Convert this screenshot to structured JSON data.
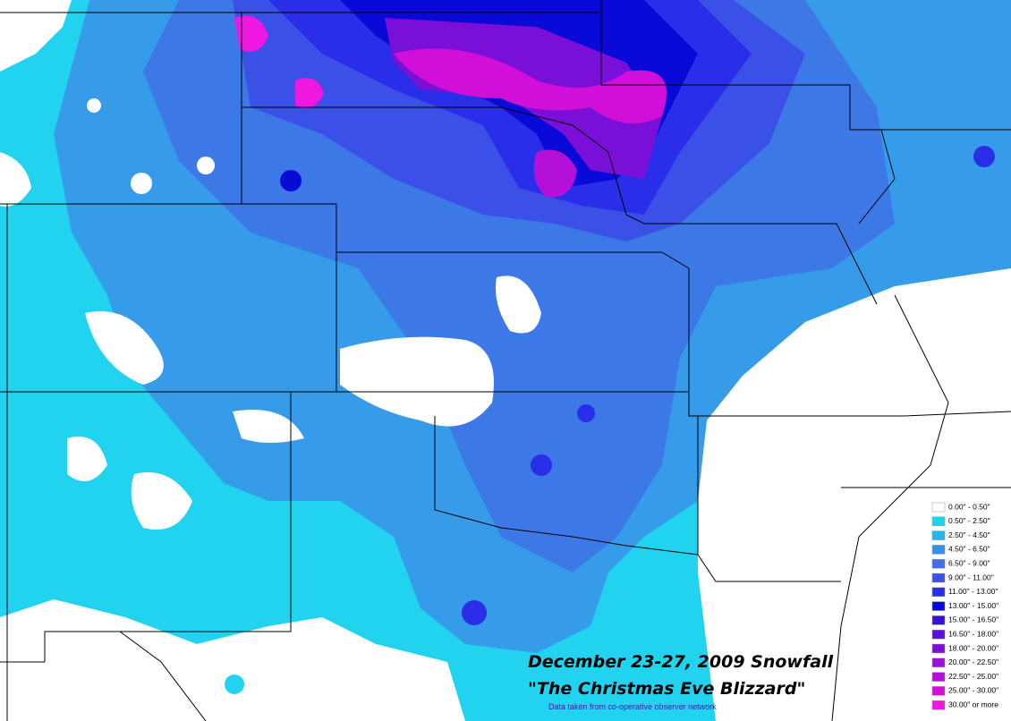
{
  "map": {
    "title_line1": "December 23-27, 2009 Snowfall",
    "title_line2": "\"The Christmas Eve Blizzard\"",
    "source_note": "Data taken from co-operative observer network",
    "legend": [
      {
        "label": "0.00\" - 0.50\"",
        "color": "#ffffff"
      },
      {
        "label": "0.50\" - 2.50\"",
        "color": "#22d3f0"
      },
      {
        "label": "2.50\" - 4.50\"",
        "color": "#27b4ee"
      },
      {
        "label": "4.50\" - 6.50\"",
        "color": "#3a90e8"
      },
      {
        "label": "6.50\" - 9.00\"",
        "color": "#3f70e6"
      },
      {
        "label": "9.00\" - 11.00\"",
        "color": "#3a50e6"
      },
      {
        "label": "11.00\" - 13.00\"",
        "color": "#2a2ee8"
      },
      {
        "label": "13.00\" - 15.00\"",
        "color": "#0a0ad8"
      },
      {
        "label": "15.00\" - 16.50\"",
        "color": "#3a10d8"
      },
      {
        "label": "16.50\" - 18.00\"",
        "color": "#5a10d8"
      },
      {
        "label": "18.00\" - 20.00\"",
        "color": "#7a10d8"
      },
      {
        "label": "20.00\" - 22.50\"",
        "color": "#9a10d8"
      },
      {
        "label": "22.50\" - 25.00\"",
        "color": "#b410d8"
      },
      {
        "label": "25.00\" - 30.00\"",
        "color": "#d010d8"
      },
      {
        "label": "30.00\" or more",
        "color": "#ee18e0"
      }
    ]
  }
}
